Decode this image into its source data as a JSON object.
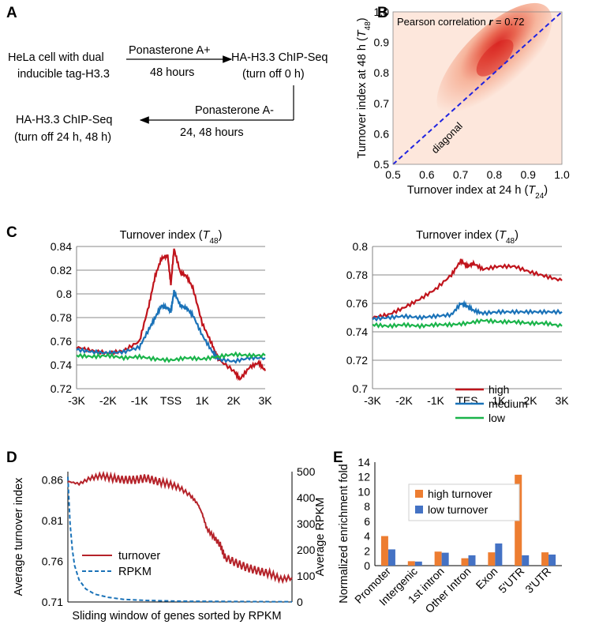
{
  "panels": {
    "A": "A",
    "B": "B",
    "C": "C",
    "D": "D",
    "E": "E"
  },
  "panelA": {
    "cell_line1": "HeLa cell with dual",
    "cell_line2": "inducible tag-H3.3",
    "step1_top": "Ponasterone A+",
    "step1_bottom": "48 hours",
    "chip1_line1": "HA-H3.3 ChIP-Seq",
    "chip1_line2": "(turn off 0 h)",
    "step2_top": "Ponasterone A-",
    "step2_bottom": "24, 48 hours",
    "chip2_line1": "HA-H3.3 ChIP-Seq",
    "chip2_line2": "(turn off 24 h, 48 h)"
  },
  "chart_data": [
    {
      "id": "B",
      "type": "heatmap",
      "annotation_prefix": "Pearson correlation ",
      "annotation_r": "r",
      "annotation_suffix": " = 0.72",
      "diagonal_label": "diagonal",
      "xlabel_main": "Turnover index at 24 h (",
      "xlabel_var": "T",
      "xlabel_sub": "24",
      "xlabel_end": ")",
      "ylabel_main": "Turnover index at 48 h (",
      "ylabel_var": "T",
      "ylabel_sub": "48",
      "ylabel_end": ")",
      "xlim": [
        0.5,
        1.0
      ],
      "ylim": [
        0.5,
        1.0
      ],
      "x_ticks": [
        "0.5",
        "0.6",
        "0.7",
        "0.8",
        "0.9",
        "1.0"
      ],
      "y_ticks": [
        "0.5",
        "0.6",
        "0.7",
        "0.8",
        "0.9",
        "1.0"
      ],
      "density_peak": [
        0.8,
        0.84
      ],
      "colors": {
        "low": "#fde7dc",
        "high": "#d8231f",
        "diagonal": "#1f23e0"
      }
    },
    {
      "id": "C-left",
      "type": "line",
      "title_main": "Turnover index (",
      "title_var": "T",
      "title_sub": "48",
      "title_end": ")",
      "x_ticks": [
        "-3K",
        "-2K",
        "-1K",
        "TSS",
        "1K",
        "2K",
        "3K"
      ],
      "y_ticks": [
        "0.72",
        "0.74",
        "0.76",
        "0.78",
        "0.8",
        "0.82",
        "0.84"
      ],
      "xlim": [
        -3000,
        3000
      ],
      "ylim": [
        0.72,
        0.84
      ],
      "series": [
        {
          "key": "high",
          "color": "#c0141c",
          "x": [
            -3000,
            -2500,
            -2000,
            -1500,
            -1000,
            -700,
            -500,
            -300,
            -100,
            0,
            100,
            300,
            500,
            700,
            1000,
            1300,
            1500,
            2000,
            2200,
            2500,
            2800,
            3000
          ],
          "y": [
            0.755,
            0.752,
            0.75,
            0.752,
            0.76,
            0.79,
            0.815,
            0.83,
            0.832,
            0.808,
            0.838,
            0.818,
            0.815,
            0.805,
            0.775,
            0.758,
            0.745,
            0.735,
            0.728,
            0.738,
            0.742,
            0.735
          ]
        },
        {
          "key": "medium",
          "color": "#1a72b8",
          "x": [
            -3000,
            -2500,
            -2000,
            -1500,
            -1000,
            -700,
            -500,
            -300,
            -100,
            0,
            100,
            300,
            500,
            700,
            1000,
            1300,
            1500,
            2000,
            2500,
            3000
          ],
          "y": [
            0.753,
            0.751,
            0.75,
            0.751,
            0.755,
            0.77,
            0.78,
            0.79,
            0.788,
            0.785,
            0.802,
            0.79,
            0.788,
            0.782,
            0.765,
            0.752,
            0.745,
            0.743,
            0.746,
            0.746
          ]
        },
        {
          "key": "low",
          "color": "#1ab44a",
          "x": [
            -3000,
            -2500,
            -2000,
            -1500,
            -1000,
            -500,
            0,
            500,
            1000,
            1500,
            2000,
            2500,
            3000
          ],
          "y": [
            0.748,
            0.747,
            0.748,
            0.746,
            0.747,
            0.745,
            0.744,
            0.746,
            0.745,
            0.747,
            0.749,
            0.748,
            0.748
          ]
        }
      ]
    },
    {
      "id": "C-right",
      "type": "line",
      "title_main": "Turnover index (",
      "title_var": "T",
      "title_sub": "48",
      "title_end": ")",
      "x_ticks": [
        "-3K",
        "-2K",
        "-1K",
        "TES",
        "1K",
        "2K",
        "3K"
      ],
      "y_ticks": [
        "0.7",
        "0.72",
        "0.74",
        "0.76",
        "0.78",
        "0.8"
      ],
      "xlim": [
        -3000,
        3000
      ],
      "ylim": [
        0.7,
        0.8
      ],
      "legend": [
        "high",
        "medium",
        "low"
      ],
      "series": [
        {
          "key": "high",
          "color": "#c0141c",
          "x": [
            -3000,
            -2500,
            -2000,
            -1500,
            -1000,
            -500,
            -200,
            0,
            200,
            500,
            1000,
            1500,
            2000,
            2500,
            3000
          ],
          "y": [
            0.75,
            0.752,
            0.757,
            0.763,
            0.77,
            0.78,
            0.79,
            0.786,
            0.788,
            0.784,
            0.786,
            0.786,
            0.782,
            0.779,
            0.776
          ]
        },
        {
          "key": "medium",
          "color": "#1a72b8",
          "x": [
            -3000,
            -2500,
            -2000,
            -1500,
            -1000,
            -500,
            -200,
            0,
            200,
            500,
            1000,
            1500,
            2000,
            2500,
            3000
          ],
          "y": [
            0.749,
            0.75,
            0.751,
            0.75,
            0.751,
            0.752,
            0.76,
            0.758,
            0.755,
            0.753,
            0.754,
            0.754,
            0.754,
            0.754,
            0.754
          ]
        },
        {
          "key": "low",
          "color": "#1ab44a",
          "x": [
            -3000,
            -2500,
            -2000,
            -1500,
            -1000,
            -500,
            0,
            500,
            1000,
            1500,
            2000,
            2500,
            3000
          ],
          "y": [
            0.745,
            0.744,
            0.745,
            0.744,
            0.745,
            0.745,
            0.746,
            0.748,
            0.747,
            0.747,
            0.746,
            0.746,
            0.744
          ]
        }
      ]
    },
    {
      "id": "D",
      "type": "line",
      "xlabel": "Sliding window of genes sorted by RPKM",
      "ylabel_left": "Average turnover index",
      "ylabel_right": "Average RPKM",
      "y_ticks_left": [
        "0.71",
        "0.76",
        "0.81",
        "0.86"
      ],
      "y_ticks_right": [
        "0",
        "100",
        "200",
        "300",
        "400",
        "500"
      ],
      "ylim_left": [
        0.71,
        0.87
      ],
      "ylim_right": [
        0,
        500
      ],
      "legend": [
        "turnover",
        "RPKM"
      ],
      "series": [
        {
          "key": "turnover",
          "color": "#b5232a",
          "axis": "left",
          "x": [
            0,
            0.05,
            0.1,
            0.15,
            0.2,
            0.25,
            0.3,
            0.35,
            0.4,
            0.45,
            0.5,
            0.55,
            0.58,
            0.6,
            0.62,
            0.65,
            0.68,
            0.7,
            0.75,
            0.8,
            0.85,
            0.9,
            0.95,
            1.0
          ],
          "y": [
            0.858,
            0.855,
            0.862,
            0.865,
            0.862,
            0.86,
            0.86,
            0.862,
            0.858,
            0.855,
            0.85,
            0.84,
            0.83,
            0.818,
            0.8,
            0.79,
            0.78,
            0.765,
            0.758,
            0.752,
            0.748,
            0.745,
            0.738,
            0.74
          ]
        },
        {
          "key": "RPKM",
          "color": "#1a72b8",
          "axis": "right",
          "x": [
            0,
            0.01,
            0.02,
            0.03,
            0.05,
            0.08,
            0.12,
            0.18,
            0.25,
            0.35,
            0.5,
            0.7,
            1.0
          ],
          "y": [
            480,
            300,
            200,
            140,
            85,
            50,
            30,
            18,
            10,
            6,
            3,
            2,
            1
          ]
        }
      ]
    },
    {
      "id": "E",
      "type": "bar",
      "ylabel": "Normalized enrichment fold",
      "categories": [
        "Promoter",
        "Intergenic",
        "1st intron",
        "Other Intron",
        "Exon",
        "5'UTR",
        "3'UTR"
      ],
      "ylim": [
        0,
        14
      ],
      "y_ticks": [
        "0",
        "2",
        "4",
        "6",
        "8",
        "10",
        "12",
        "14"
      ],
      "series": [
        {
          "name": "high turnover",
          "color": "#ed7d31",
          "values": [
            4.0,
            0.6,
            1.9,
            1.0,
            1.8,
            12.3,
            1.8
          ]
        },
        {
          "name": "low turnover",
          "color": "#4472c4",
          "values": [
            2.2,
            0.55,
            1.75,
            1.4,
            3.0,
            1.4,
            1.5
          ]
        }
      ]
    }
  ]
}
